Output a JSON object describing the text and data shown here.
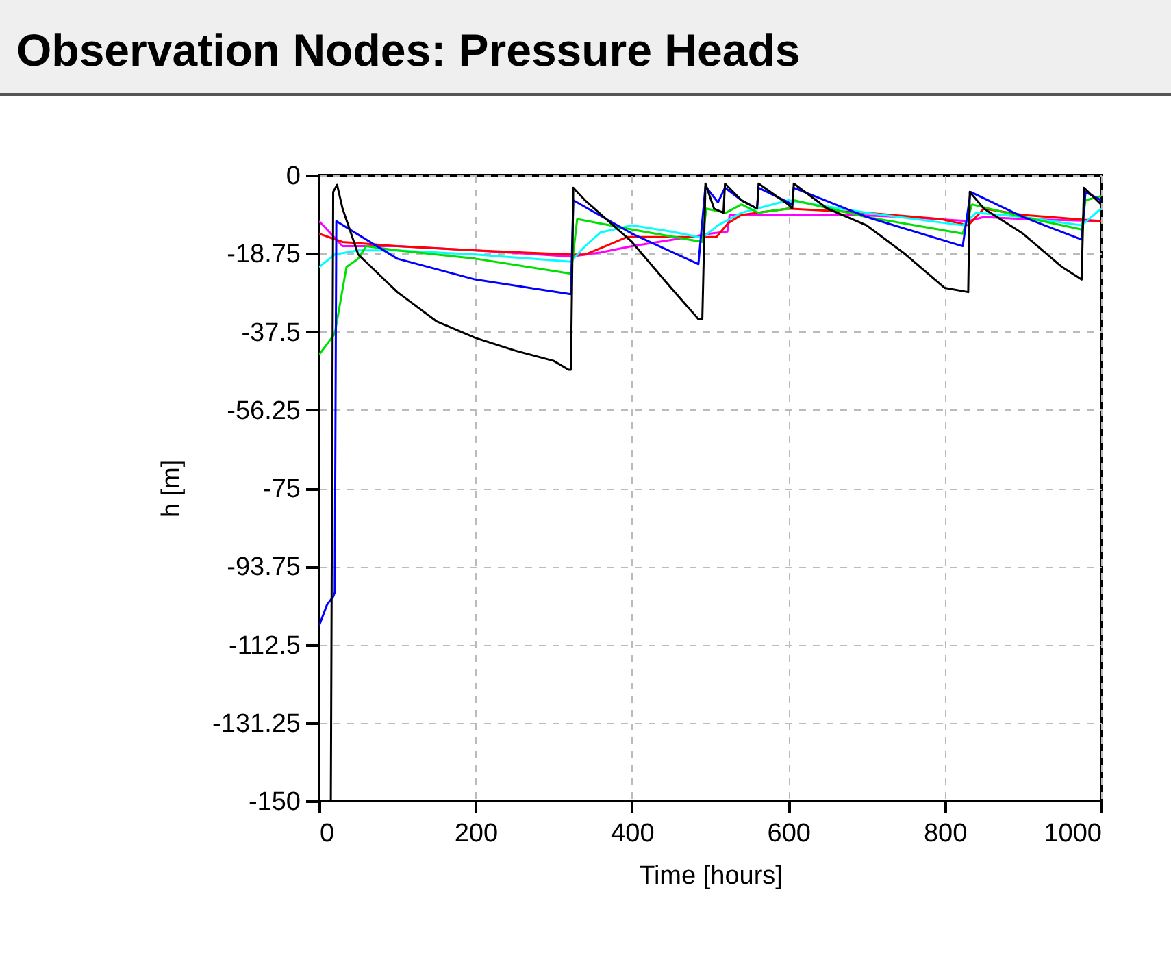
{
  "chart_data": {
    "type": "line",
    "title": "Observation Nodes: Pressure Heads",
    "xlabel": "Time [hours]",
    "ylabel": "h [m]",
    "xlim": [
      0,
      1000
    ],
    "ylim": [
      -150,
      0
    ],
    "xticks": [
      0,
      200,
      400,
      600,
      800,
      1000
    ],
    "yticks": [
      0,
      -18.75,
      -37.5,
      -56.25,
      -75,
      -93.75,
      -112.5,
      -131.25,
      -150
    ],
    "grid": true,
    "line_style": "solid",
    "series": [
      {
        "color": "#ff00ff",
        "x": [
          0,
          30,
          100,
          200,
          322,
          360,
          400,
          450,
          500,
          522,
          525,
          600,
          680,
          750,
          830,
          850,
          900,
          1000
        ],
        "values": [
          -11,
          -17,
          -17,
          -18,
          -19.5,
          -18.5,
          -17,
          -15.5,
          -14,
          -13.5,
          -9.5,
          -9.5,
          -9.5,
          -10,
          -11,
          -10,
          -10.5,
          -11
        ]
      },
      {
        "color": "#ff0000",
        "x": [
          0,
          30,
          100,
          200,
          322,
          340,
          366,
          394,
          450,
          508,
          523,
          540,
          600,
          700,
          795,
          830,
          850,
          900,
          1000
        ],
        "values": [
          -14,
          -16,
          -17,
          -18,
          -19,
          -19,
          -17,
          -14.8,
          -14.8,
          -14.8,
          -11.5,
          -9.5,
          -8,
          -9,
          -10.5,
          -12,
          -8,
          -9.5,
          -11
        ]
      },
      {
        "color": "#00ffff",
        "x": [
          0,
          20,
          50,
          100,
          200,
          322,
          340,
          360,
          400,
          450,
          490,
          510,
          540,
          600,
          700,
          823,
          840,
          900,
          975,
          1000
        ],
        "values": [
          -22,
          -19,
          -18,
          -18,
          -19,
          -20.7,
          -17,
          -13.7,
          -12,
          -13.5,
          -15,
          -12,
          -9,
          -6,
          -9,
          -12,
          -9,
          -10,
          -12,
          -8
        ]
      },
      {
        "color": "#00e000",
        "x": [
          0,
          20,
          35,
          50,
          60,
          100,
          200,
          322,
          330,
          400,
          490,
          495,
          520,
          540,
          562,
          600,
          607,
          700,
          823,
          835,
          900,
          975,
          980,
          1000
        ],
        "values": [
          -43,
          -38,
          -22,
          -20,
          -17,
          -18,
          -20,
          -23.6,
          -10.5,
          -13,
          -16,
          -8,
          -9,
          -7,
          -9,
          -8,
          -6,
          -10,
          -14,
          -7,
          -10,
          -13,
          -6,
          -5
        ]
      },
      {
        "color": "#0000ff",
        "x": [
          0,
          10,
          18,
          20,
          22,
          100,
          200,
          322,
          325,
          400,
          485,
          494,
          510,
          519,
          540,
          560,
          562,
          600,
          605,
          607,
          700,
          823,
          833,
          900,
          975,
          980,
          1000
        ],
        "values": [
          -108,
          -103,
          -101,
          -100,
          -11,
          -20,
          -25,
          -28.5,
          -6,
          -14,
          -21.3,
          -2.6,
          -6.5,
          -3,
          -6,
          -8,
          -3,
          -6.5,
          -7,
          -3,
          -10,
          -17,
          -4,
          -10,
          -15.4,
          -4,
          -6
        ]
      },
      {
        "color": "#000000",
        "x": [
          0,
          15,
          18,
          23,
          30,
          50,
          100,
          150,
          200,
          250,
          300,
          319,
          322,
          325,
          340,
          400,
          450,
          485,
          490,
          494,
          505,
          517,
          519,
          540,
          560,
          562,
          600,
          605,
          607,
          650,
          700,
          750,
          800,
          830,
          832,
          850,
          900,
          950,
          975,
          978,
          1000
        ],
        "values": [
          -150,
          -150,
          -4,
          -2.3,
          -8,
          -19,
          -28,
          -35,
          -39,
          -42,
          -44.5,
          -46.6,
          -46.6,
          -3,
          -6,
          -16,
          -27,
          -34.5,
          -34.5,
          -2,
          -8,
          -9,
          -2,
          -6,
          -8,
          -2,
          -7,
          -8,
          -2,
          -8,
          -12,
          -19,
          -27,
          -28,
          -4,
          -8,
          -14,
          -22,
          -25,
          -3,
          -7
        ]
      }
    ]
  }
}
